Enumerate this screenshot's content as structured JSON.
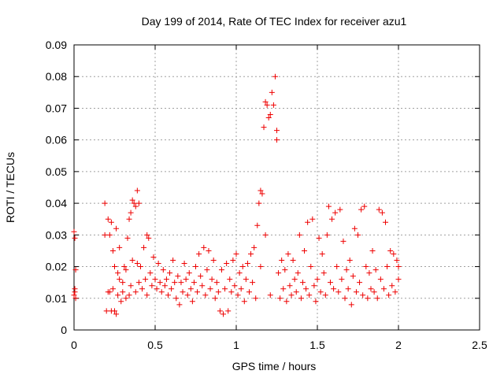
{
  "chart_data": {
    "type": "scatter",
    "title": "Day 199 of 2014, Rate Of TEC Index for receiver azu1",
    "xlabel": "GPS time / hours",
    "ylabel": "ROTI / TECUs",
    "xlim": [
      0,
      2.5
    ],
    "ylim": [
      0,
      0.09
    ],
    "x_ticks": [
      "0",
      "0.5",
      "1",
      "1.5",
      "2",
      "2.5"
    ],
    "y_ticks": [
      "0",
      "0.01",
      "0.02",
      "0.03",
      "0.04",
      "0.05",
      "0.06",
      "0.07",
      "0.08",
      "0.09"
    ],
    "x_tick_values": [
      0,
      0.5,
      1,
      1.5,
      2,
      2.5
    ],
    "y_tick_values": [
      0,
      0.01,
      0.02,
      0.03,
      0.04,
      0.05,
      0.06,
      0.07,
      0.08,
      0.09
    ],
    "grid": true,
    "marker": "+",
    "color": "#ee0000",
    "series": [
      {
        "name": "ROTI",
        "points": [
          [
            0.0,
            0.031
          ],
          [
            0.005,
            0.029
          ],
          [
            0.01,
            0.019
          ],
          [
            0.005,
            0.012
          ],
          [
            0.01,
            0.01
          ],
          [
            0.005,
            0.013
          ],
          [
            0.0,
            0.011
          ],
          [
            0.19,
            0.04
          ],
          [
            0.19,
            0.03
          ],
          [
            0.2,
            0.006
          ],
          [
            0.21,
            0.012
          ],
          [
            0.21,
            0.035
          ],
          [
            0.22,
            0.03
          ],
          [
            0.22,
            0.012
          ],
          [
            0.23,
            0.006
          ],
          [
            0.23,
            0.034
          ],
          [
            0.24,
            0.025
          ],
          [
            0.24,
            0.013
          ],
          [
            0.25,
            0.006
          ],
          [
            0.25,
            0.02
          ],
          [
            0.26,
            0.005
          ],
          [
            0.26,
            0.032
          ],
          [
            0.27,
            0.018
          ],
          [
            0.27,
            0.011
          ],
          [
            0.28,
            0.016
          ],
          [
            0.28,
            0.026
          ],
          [
            0.29,
            0.009
          ],
          [
            0.3,
            0.015
          ],
          [
            0.3,
            0.012
          ],
          [
            0.31,
            0.02
          ],
          [
            0.32,
            0.01
          ],
          [
            0.32,
            0.019
          ],
          [
            0.33,
            0.029
          ],
          [
            0.34,
            0.011
          ],
          [
            0.34,
            0.035
          ],
          [
            0.35,
            0.037
          ],
          [
            0.35,
            0.014
          ],
          [
            0.36,
            0.041
          ],
          [
            0.36,
            0.022
          ],
          [
            0.37,
            0.04
          ],
          [
            0.38,
            0.012
          ],
          [
            0.38,
            0.039
          ],
          [
            0.39,
            0.044
          ],
          [
            0.39,
            0.021
          ],
          [
            0.4,
            0.04
          ],
          [
            0.4,
            0.015
          ],
          [
            0.41,
            0.02
          ],
          [
            0.42,
            0.013
          ],
          [
            0.43,
            0.026
          ],
          [
            0.44,
            0.016
          ],
          [
            0.45,
            0.03
          ],
          [
            0.45,
            0.011
          ],
          [
            0.46,
            0.029
          ],
          [
            0.47,
            0.018
          ],
          [
            0.48,
            0.014
          ],
          [
            0.49,
            0.023
          ],
          [
            0.5,
            0.016
          ],
          [
            0.51,
            0.013
          ],
          [
            0.52,
            0.021
          ],
          [
            0.53,
            0.015
          ],
          [
            0.54,
            0.012
          ],
          [
            0.55,
            0.019
          ],
          [
            0.56,
            0.014
          ],
          [
            0.57,
            0.016
          ],
          [
            0.58,
            0.011
          ],
          [
            0.59,
            0.018
          ],
          [
            0.6,
            0.013
          ],
          [
            0.61,
            0.022
          ],
          [
            0.62,
            0.015
          ],
          [
            0.63,
            0.01
          ],
          [
            0.64,
            0.017
          ],
          [
            0.65,
            0.008
          ],
          [
            0.66,
            0.015
          ],
          [
            0.67,
            0.012
          ],
          [
            0.68,
            0.021
          ],
          [
            0.69,
            0.016
          ],
          [
            0.7,
            0.011
          ],
          [
            0.71,
            0.018
          ],
          [
            0.72,
            0.013
          ],
          [
            0.73,
            0.009
          ],
          [
            0.74,
            0.015
          ],
          [
            0.75,
            0.02
          ],
          [
            0.76,
            0.012
          ],
          [
            0.77,
            0.024
          ],
          [
            0.78,
            0.017
          ],
          [
            0.79,
            0.014
          ],
          [
            0.8,
            0.026
          ],
          [
            0.81,
            0.011
          ],
          [
            0.82,
            0.019
          ],
          [
            0.83,
            0.025
          ],
          [
            0.84,
            0.013
          ],
          [
            0.85,
            0.016
          ],
          [
            0.86,
            0.022
          ],
          [
            0.87,
            0.01
          ],
          [
            0.88,
            0.015
          ],
          [
            0.89,
            0.012
          ],
          [
            0.9,
            0.006
          ],
          [
            0.91,
            0.019
          ],
          [
            0.92,
            0.005
          ],
          [
            0.93,
            0.013
          ],
          [
            0.94,
            0.021
          ],
          [
            0.95,
            0.006
          ],
          [
            0.96,
            0.016
          ],
          [
            0.97,
            0.012
          ],
          [
            0.98,
            0.022
          ],
          [
            0.99,
            0.014
          ],
          [
            1.0,
            0.024
          ],
          [
            1.01,
            0.011
          ],
          [
            1.02,
            0.018
          ],
          [
            1.03,
            0.013
          ],
          [
            1.04,
            0.02
          ],
          [
            1.05,
            0.009
          ],
          [
            1.06,
            0.016
          ],
          [
            1.07,
            0.021
          ],
          [
            1.08,
            0.012
          ],
          [
            1.09,
            0.024
          ],
          [
            1.1,
            0.015
          ],
          [
            1.11,
            0.026
          ],
          [
            1.12,
            0.01
          ],
          [
            1.13,
            0.033
          ],
          [
            1.14,
            0.04
          ],
          [
            1.15,
            0.044
          ],
          [
            1.15,
            0.02
          ],
          [
            1.16,
            0.043
          ],
          [
            1.17,
            0.064
          ],
          [
            1.18,
            0.072
          ],
          [
            1.18,
            0.03
          ],
          [
            1.19,
            0.071
          ],
          [
            1.2,
            0.067
          ],
          [
            1.21,
            0.068
          ],
          [
            1.21,
            0.011
          ],
          [
            1.22,
            0.075
          ],
          [
            1.23,
            0.071
          ],
          [
            1.24,
            0.08
          ],
          [
            1.25,
            0.063
          ],
          [
            1.25,
            0.06
          ],
          [
            1.26,
            0.018
          ],
          [
            1.27,
            0.01
          ],
          [
            1.28,
            0.022
          ],
          [
            1.29,
            0.013
          ],
          [
            1.3,
            0.019
          ],
          [
            1.31,
            0.009
          ],
          [
            1.32,
            0.024
          ],
          [
            1.33,
            0.014
          ],
          [
            1.34,
            0.011
          ],
          [
            1.35,
            0.022
          ],
          [
            1.36,
            0.016
          ],
          [
            1.37,
            0.012
          ],
          [
            1.38,
            0.018
          ],
          [
            1.39,
            0.03
          ],
          [
            1.4,
            0.01
          ],
          [
            1.41,
            0.015
          ],
          [
            1.42,
            0.025
          ],
          [
            1.43,
            0.013
          ],
          [
            1.44,
            0.034
          ],
          [
            1.45,
            0.011
          ],
          [
            1.46,
            0.02
          ],
          [
            1.47,
            0.035
          ],
          [
            1.48,
            0.014
          ],
          [
            1.49,
            0.009
          ],
          [
            1.5,
            0.016
          ],
          [
            1.51,
            0.029
          ],
          [
            1.52,
            0.012
          ],
          [
            1.53,
            0.024
          ],
          [
            1.54,
            0.018
          ],
          [
            1.55,
            0.011
          ],
          [
            1.56,
            0.03
          ],
          [
            1.57,
            0.039
          ],
          [
            1.58,
            0.015
          ],
          [
            1.59,
            0.035
          ],
          [
            1.6,
            0.013
          ],
          [
            1.61,
            0.037
          ],
          [
            1.62,
            0.02
          ],
          [
            1.63,
            0.012
          ],
          [
            1.64,
            0.038
          ],
          [
            1.65,
            0.016
          ],
          [
            1.66,
            0.028
          ],
          [
            1.67,
            0.01
          ],
          [
            1.68,
            0.019
          ],
          [
            1.69,
            0.013
          ],
          [
            1.7,
            0.022
          ],
          [
            1.71,
            0.008
          ],
          [
            1.72,
            0.017
          ],
          [
            1.73,
            0.032
          ],
          [
            1.74,
            0.012
          ],
          [
            1.75,
            0.03
          ],
          [
            1.76,
            0.015
          ],
          [
            1.77,
            0.038
          ],
          [
            1.78,
            0.011
          ],
          [
            1.79,
            0.039
          ],
          [
            1.8,
            0.02
          ],
          [
            1.81,
            0.01
          ],
          [
            1.82,
            0.018
          ],
          [
            1.83,
            0.013
          ],
          [
            1.84,
            0.025
          ],
          [
            1.85,
            0.012
          ],
          [
            1.86,
            0.019
          ],
          [
            1.87,
            0.01
          ],
          [
            1.88,
            0.038
          ],
          [
            1.89,
            0.016
          ],
          [
            1.9,
            0.037
          ],
          [
            1.91,
            0.013
          ],
          [
            1.92,
            0.034
          ],
          [
            1.93,
            0.02
          ],
          [
            1.94,
            0.011
          ],
          [
            1.95,
            0.025
          ],
          [
            1.96,
            0.014
          ],
          [
            1.97,
            0.024
          ],
          [
            1.98,
            0.012
          ],
          [
            1.99,
            0.022
          ],
          [
            2.0,
            0.016
          ],
          [
            2.0,
            0.02
          ]
        ]
      }
    ]
  }
}
